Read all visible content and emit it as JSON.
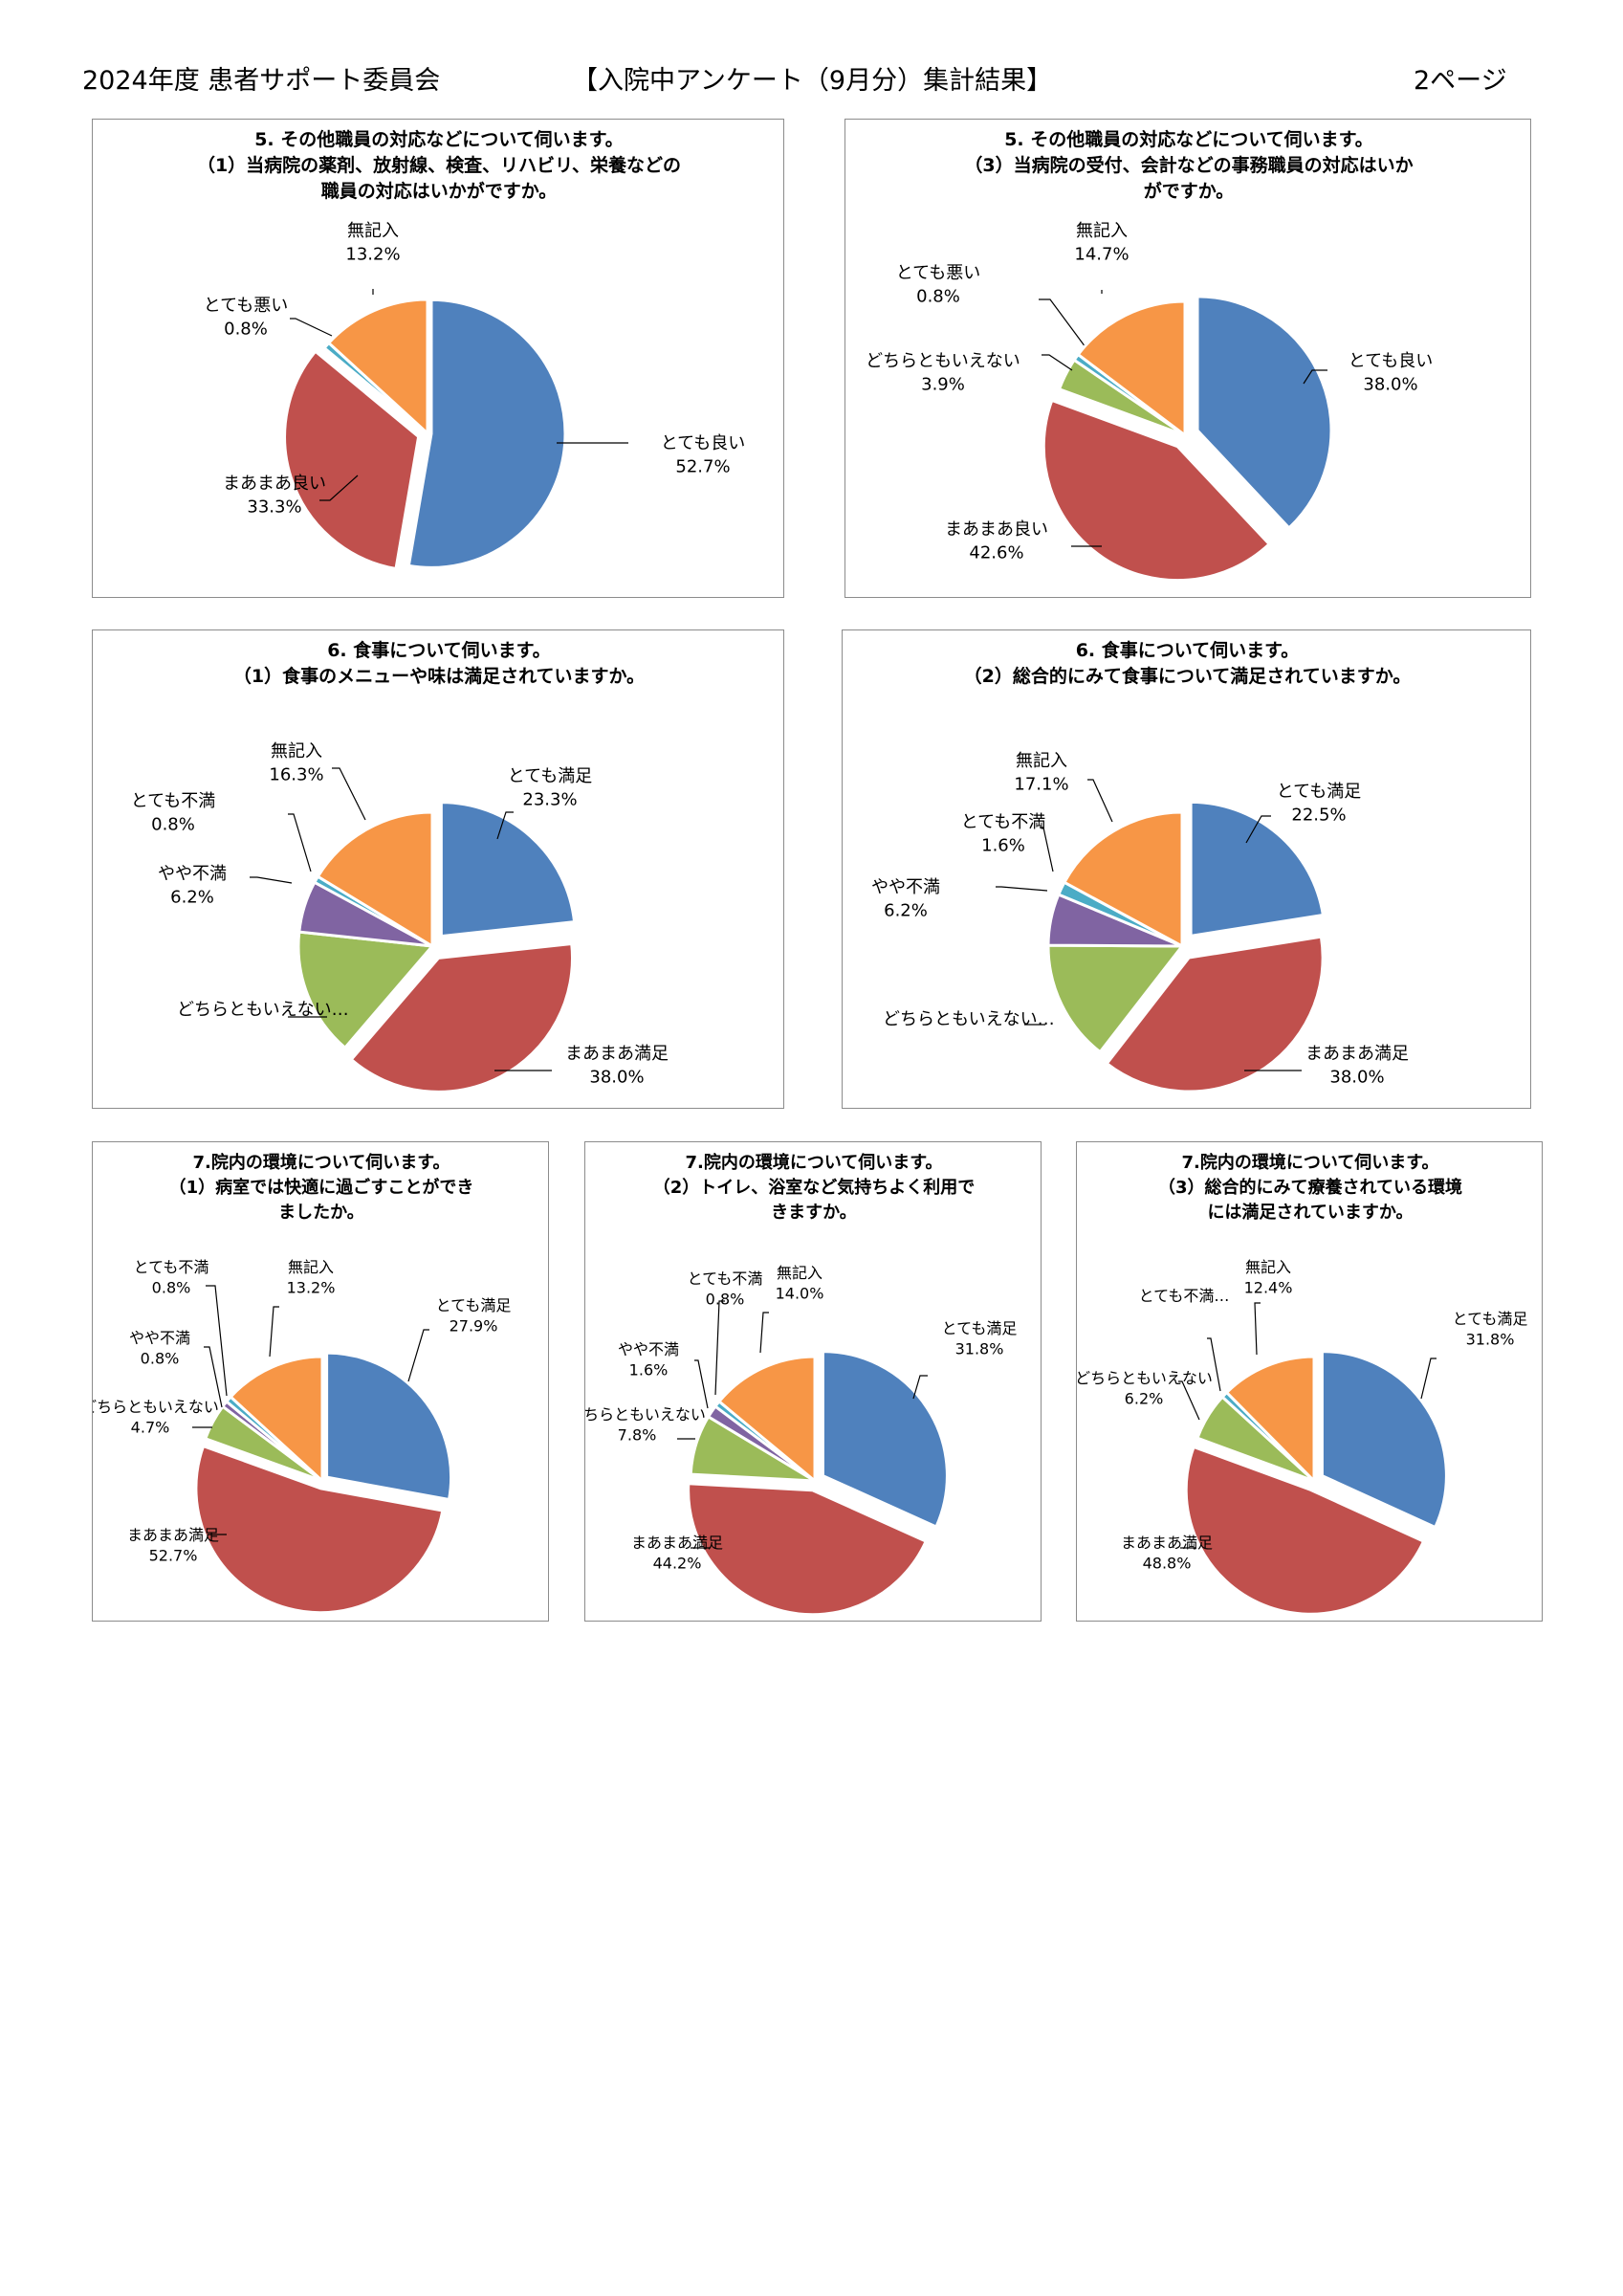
{
  "header": {
    "left": "2024年度 患者サポート委員会",
    "center": "【入院中アンケート（9月分）集計結果】",
    "right": "2ページ"
  },
  "colors": {
    "blue": "#4F81BD",
    "red": "#C0504D",
    "green": "#9BBB59",
    "purple": "#8064A2",
    "cyan": "#4BACC6",
    "orange": "#F79646"
  },
  "chart_data": [
    {
      "id": "c5-1",
      "type": "pie",
      "title": [
        "5. その他職員の対応などについて伺います。",
        "（1）当病院の薬剤、放射線、検査、リハビリ、栄養などの",
        "職員の対応はいかがですか。"
      ],
      "slices": [
        {
          "label": "とても良い",
          "value": 52.7,
          "display": "52.7%",
          "color": "#4F81BD"
        },
        {
          "label": "まあまあ良い",
          "value": 33.3,
          "display": "33.3%",
          "color": "#C0504D"
        },
        {
          "label": "とても悪い",
          "value": 0.8,
          "display": "0.8%",
          "color": "#4BACC6"
        },
        {
          "label": "無記入",
          "value": 13.2,
          "display": "13.2%",
          "color": "#F79646"
        }
      ]
    },
    {
      "id": "c5-3",
      "type": "pie",
      "title": [
        "5. その他職員の対応などについて伺います。",
        "（3）当病院の受付、会計などの事務職員の対応はいか",
        "がですか。"
      ],
      "slices": [
        {
          "label": "とても良い",
          "value": 38.0,
          "display": "38.0%",
          "color": "#4F81BD"
        },
        {
          "label": "まあまあ良い",
          "value": 42.6,
          "display": "42.6%",
          "color": "#C0504D"
        },
        {
          "label": "どちらともいえない",
          "value": 3.9,
          "display": "3.9%",
          "color": "#9BBB59"
        },
        {
          "label": "とても悪い",
          "value": 0.8,
          "display": "0.8%",
          "color": "#4BACC6"
        },
        {
          "label": "無記入",
          "value": 14.7,
          "display": "14.7%",
          "color": "#F79646"
        }
      ]
    },
    {
      "id": "c6-1",
      "type": "pie",
      "title": [
        "6. 食事について伺います。",
        "（1）食事のメニューや味は満足されていますか。"
      ],
      "slices": [
        {
          "label": "とても満足",
          "value": 23.3,
          "display": "23.3%",
          "color": "#4F81BD"
        },
        {
          "label": "まあまあ満足",
          "value": 38.0,
          "display": "38.0%",
          "color": "#C0504D"
        },
        {
          "label": "どちらともいえない…",
          "value": 15.4,
          "display": "",
          "color": "#9BBB59"
        },
        {
          "label": "やや不満",
          "value": 6.2,
          "display": "6.2%",
          "color": "#8064A2"
        },
        {
          "label": "とても不満",
          "value": 0.8,
          "display": "0.8%",
          "color": "#4BACC6"
        },
        {
          "label": "無記入",
          "value": 16.3,
          "display": "16.3%",
          "color": "#F79646"
        }
      ]
    },
    {
      "id": "c6-2",
      "type": "pie",
      "title": [
        "6. 食事について伺います。",
        "（2）総合的にみて食事について満足されていますか。"
      ],
      "slices": [
        {
          "label": "とても満足",
          "value": 22.5,
          "display": "22.5%",
          "color": "#4F81BD"
        },
        {
          "label": "まあまあ満足",
          "value": 38.0,
          "display": "38.0%",
          "color": "#C0504D"
        },
        {
          "label": "どちらともいえない…",
          "value": 14.6,
          "display": "",
          "color": "#9BBB59"
        },
        {
          "label": "やや不満",
          "value": 6.2,
          "display": "6.2%",
          "color": "#8064A2"
        },
        {
          "label": "とても不満",
          "value": 1.6,
          "display": "1.6%",
          "color": "#4BACC6"
        },
        {
          "label": "無記入",
          "value": 17.1,
          "display": "17.1%",
          "color": "#F79646"
        }
      ]
    },
    {
      "id": "c7-1",
      "type": "pie",
      "title": [
        "7.院内の環境について伺います。",
        "（1）病室では快適に過ごすことができ",
        "ましたか。"
      ],
      "slices": [
        {
          "label": "とても満足",
          "value": 27.9,
          "display": "27.9%",
          "color": "#4F81BD"
        },
        {
          "label": "まあまあ満足",
          "value": 52.7,
          "display": "52.7%",
          "color": "#C0504D"
        },
        {
          "label": "どちらともいえない",
          "value": 4.7,
          "display": "4.7%",
          "color": "#9BBB59"
        },
        {
          "label": "やや不満",
          "value": 0.8,
          "display": "0.8%",
          "color": "#8064A2"
        },
        {
          "label": "とても不満",
          "value": 0.8,
          "display": "0.8%",
          "color": "#4BACC6"
        },
        {
          "label": "無記入",
          "value": 13.2,
          "display": "13.2%",
          "color": "#F79646"
        }
      ]
    },
    {
      "id": "c7-2",
      "type": "pie",
      "title": [
        "7.院内の環境について伺います。",
        "（2）トイレ、浴室など気持ちよく利用で",
        "きますか。"
      ],
      "slices": [
        {
          "label": "とても満足",
          "value": 31.8,
          "display": "31.8%",
          "color": "#4F81BD"
        },
        {
          "label": "まあまあ満足",
          "value": 44.2,
          "display": "44.2%",
          "color": "#C0504D"
        },
        {
          "label": "どちらともいえない",
          "value": 7.8,
          "display": "7.8%",
          "color": "#9BBB59"
        },
        {
          "label": "やや不満",
          "value": 1.6,
          "display": "1.6%",
          "color": "#8064A2"
        },
        {
          "label": "とても不満",
          "value": 0.8,
          "display": "0.8%",
          "color": "#4BACC6"
        },
        {
          "label": "無記入",
          "value": 14.0,
          "display": "14.0%",
          "color": "#F79646"
        }
      ]
    },
    {
      "id": "c7-3",
      "type": "pie",
      "title": [
        "7.院内の環境について伺います。",
        "（3）総合的にみて療養されている環境",
        "には満足されていますか。"
      ],
      "slices": [
        {
          "label": "とても満足",
          "value": 31.8,
          "display": "31.8%",
          "color": "#4F81BD"
        },
        {
          "label": "まあまあ満足",
          "value": 48.8,
          "display": "48.8%",
          "color": "#C0504D"
        },
        {
          "label": "どちらともいえない",
          "value": 6.2,
          "display": "6.2%",
          "color": "#9BBB59"
        },
        {
          "label": "とても不満…",
          "value": 0.8,
          "display": "",
          "color": "#4BACC6"
        },
        {
          "label": "無記入",
          "value": 12.4,
          "display": "12.4%",
          "color": "#F79646"
        }
      ]
    }
  ]
}
